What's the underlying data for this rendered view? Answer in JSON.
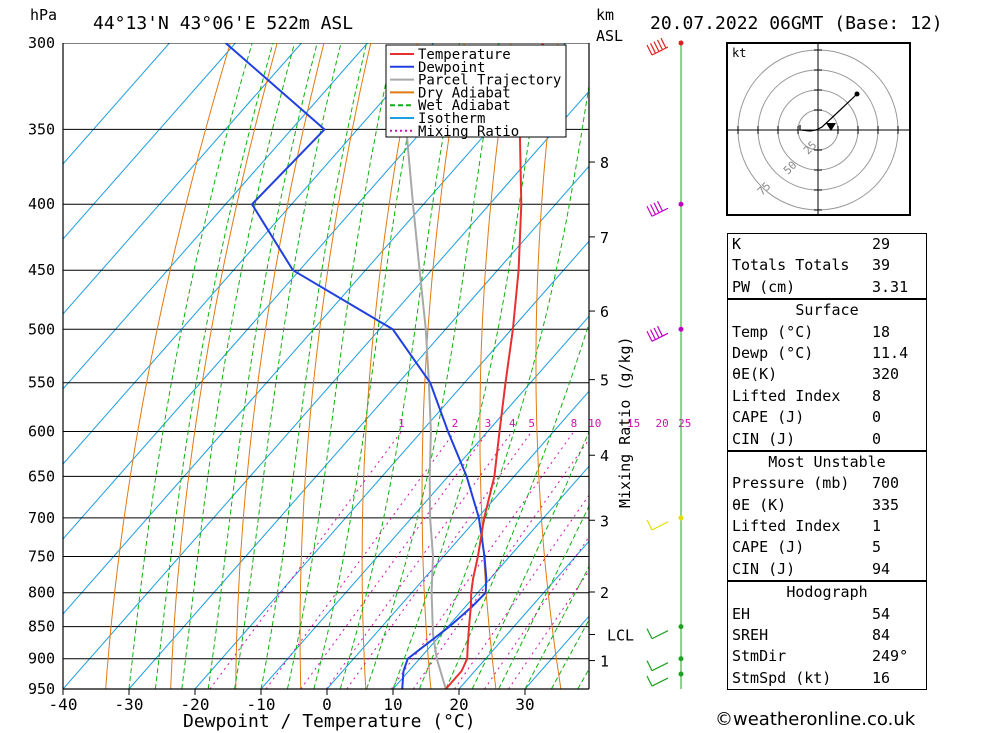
{
  "header": {
    "pressure_unit": "hPa",
    "location": "44°13'N 43°06'E 522m ASL",
    "km_label": "km",
    "asl_label": "ASL",
    "datetime": "20.07.2022 06GMT (Base: 12)"
  },
  "colors": {
    "temperature": "#e83030",
    "dewpoint": "#2040e0",
    "parcel": "#a8a8a8",
    "dry_adiabat": "#e07a10",
    "wet_adiabat": "#10b010",
    "isotherm": "#1c9ee0",
    "mixing_ratio": "#d010b0",
    "wind_line": "#20a020"
  },
  "chart_data": {
    "type": "line",
    "title": "44°13'N 43°06'E 522m ASL",
    "xlabel": "Dewpoint / Temperature (°C)",
    "ylabel": "hPa",
    "xlim": [
      -40,
      39
    ],
    "ylim": [
      950,
      300
    ],
    "y_scale": "log",
    "skew": true,
    "grid": true,
    "legend_position": "top-center",
    "x_ticks": [
      -40,
      -30,
      -20,
      -10,
      0,
      10,
      20,
      30
    ],
    "pressure_ticks": [
      300,
      350,
      400,
      450,
      500,
      550,
      600,
      650,
      700,
      750,
      800,
      850,
      900,
      950
    ],
    "km_ticks": [
      {
        "label": "8",
        "p": 371
      },
      {
        "label": "7",
        "p": 424
      },
      {
        "label": "6",
        "p": 484
      },
      {
        "label": "5",
        "p": 547
      },
      {
        "label": "4",
        "p": 626
      },
      {
        "label": "3",
        "p": 703
      },
      {
        "label": "2",
        "p": 799
      },
      {
        "label": "LCL",
        "p": 862
      },
      {
        "label": "1",
        "p": 903
      }
    ],
    "right_axis_label": "Mixing Ratio (g/kg)",
    "mixing_ratio_labels": [
      "1",
      "2",
      "3",
      "4",
      "5",
      "8",
      "10",
      "15",
      "20",
      "25"
    ],
    "legend": [
      "Temperature",
      "Dewpoint",
      "Parcel Trajectory",
      "Dry Adiabat",
      "Wet Adiabat",
      "Isotherm",
      "Mixing Ratio"
    ],
    "series": [
      {
        "name": "Temperature",
        "p": [
          950,
          920,
          900,
          880,
          850,
          820,
          800,
          780,
          750,
          700,
          650,
          600,
          550,
          500,
          450,
          400,
          350,
          300
        ],
        "t": [
          18,
          18,
          17.2,
          15.6,
          13.2,
          10.8,
          9.0,
          7.4,
          5.2,
          1.0,
          -3.0,
          -8.2,
          -13.8,
          -19.8,
          -26.8,
          -35.2,
          -45.4,
          -53.4
        ]
      },
      {
        "name": "Dewpoint",
        "p": [
          950,
          920,
          900,
          880,
          850,
          820,
          800,
          780,
          750,
          700,
          650,
          600,
          550,
          500,
          450,
          400,
          350,
          300
        ],
        "t": [
          11.4,
          9.2,
          8.2,
          9.0,
          10.2,
          11.0,
          11.2,
          9.4,
          6.2,
          0.2,
          -7.2,
          -16.0,
          -25.2,
          -38.0,
          -61.0,
          -76.0,
          -75.0,
          -101.5
        ]
      },
      {
        "name": "Parcel Trajectory",
        "p": [
          950,
          900,
          862,
          800,
          750,
          700,
          650,
          600,
          550,
          500,
          450,
          400,
          350,
          310
        ],
        "t": [
          18,
          12.6,
          8.8,
          3.0,
          -1.6,
          -7.2,
          -12.8,
          -18.6,
          -25.4,
          -33.0,
          -41.8,
          -51.6,
          -62.6,
          -72.0
        ]
      }
    ],
    "wind_barbs": [
      {
        "p": 300,
        "speed": 50
      },
      {
        "p": 400,
        "speed": 40
      },
      {
        "p": 500,
        "speed": 35
      },
      {
        "p": 700,
        "speed": 5
      },
      {
        "p": 850,
        "speed": 10
      },
      {
        "p": 900,
        "speed": 10
      },
      {
        "p": 925,
        "speed": 10
      }
    ],
    "hodograph": {
      "unit_label": "kt",
      "ring_labels": [
        "25",
        "50",
        "75"
      ]
    }
  },
  "indices": {
    "k_label": "K",
    "k_value": "29",
    "tt_label": "Totals Totals",
    "tt_value": "39",
    "pw_label": "PW (cm)",
    "pw_value": "3.31"
  },
  "surface": {
    "title": "Surface",
    "rows": [
      {
        "label": "Temp (°C)",
        "value": "18"
      },
      {
        "label": "Dewp (°C)",
        "value": "11.4"
      },
      {
        "label": "θE(K)",
        "value": "320"
      },
      {
        "label": "Lifted Index",
        "value": "8"
      },
      {
        "label": "CAPE (J)",
        "value": "0"
      },
      {
        "label": "CIN (J)",
        "value": "0"
      }
    ]
  },
  "most_unstable": {
    "title": "Most Unstable",
    "rows": [
      {
        "label": "Pressure (mb)",
        "value": "700"
      },
      {
        "label": "θE (K)",
        "value": "335"
      },
      {
        "label": "Lifted Index",
        "value": "1"
      },
      {
        "label": "CAPE (J)",
        "value": "5"
      },
      {
        "label": "CIN (J)",
        "value": "94"
      }
    ]
  },
  "hodograph_params": {
    "title": "Hodograph",
    "rows": [
      {
        "label": "EH",
        "value": "54"
      },
      {
        "label": "SREH",
        "value": "84"
      },
      {
        "label": "StmDir",
        "value": "249°"
      },
      {
        "label": "StmSpd (kt)",
        "value": "16"
      }
    ]
  },
  "credit": "©weatheronline.co.uk"
}
